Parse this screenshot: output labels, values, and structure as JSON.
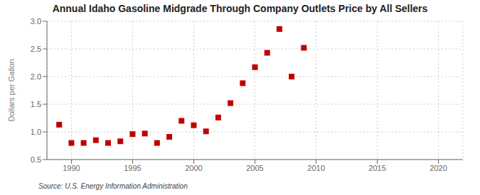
{
  "chart_data": {
    "type": "scatter",
    "title": "Annual Idaho Gasoline Midgrade Through Company Outlets Price by All Sellers",
    "ylabel": "Dollars per Gallon",
    "source": "Source: U.S. Energy Information Administration",
    "x": [
      1989,
      1990,
      1991,
      1992,
      1993,
      1994,
      1995,
      1996,
      1997,
      1998,
      1999,
      2000,
      2001,
      2002,
      2003,
      2004,
      2005,
      2006,
      2007,
      2008,
      2009
    ],
    "values": [
      1.13,
      0.8,
      0.8,
      0.85,
      0.8,
      0.83,
      0.96,
      0.97,
      0.8,
      0.91,
      1.2,
      1.12,
      1.01,
      1.26,
      1.52,
      1.88,
      2.17,
      2.43,
      2.86,
      2.0,
      2.52
    ],
    "xlim": [
      1988,
      2022
    ],
    "ylim": [
      0.5,
      3.0
    ],
    "xticks": [
      1990,
      1995,
      2000,
      2005,
      2010,
      2015,
      2020
    ],
    "yticks": [
      0.5,
      {
        "value": 1,
        "label": "1.0"
      },
      1.5,
      {
        "value": 2,
        "label": "2.0"
      },
      2.5,
      {
        "value": 3,
        "label": "3.0"
      }
    ],
    "color": "#c00000",
    "marker": "square",
    "grid": true
  }
}
